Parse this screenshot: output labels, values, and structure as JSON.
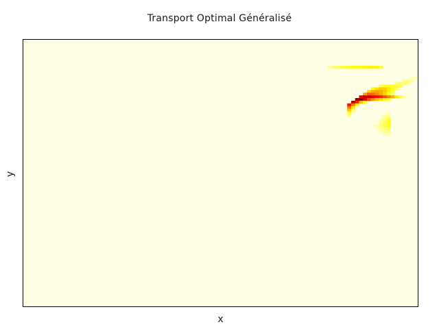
{
  "chart_data": {
    "type": "heatmap",
    "title": "Transport Optimal Généralisé",
    "xlabel": "x",
    "ylabel": "y",
    "grid": false,
    "legend": "none",
    "colormap": [
      "#ffffe5",
      "#ffff00",
      "#ff9900",
      "#ff0000",
      "#550000"
    ],
    "background_color": "#ffffe5",
    "x_ticks": [],
    "y_ticks": [],
    "ncols": 100,
    "nrows": 100,
    "cells": [
      [
        77,
        10,
        0.08
      ],
      [
        78,
        10,
        0.12
      ],
      [
        79,
        10,
        0.15
      ],
      [
        80,
        10,
        0.18
      ],
      [
        81,
        10,
        0.2
      ],
      [
        82,
        10,
        0.22
      ],
      [
        83,
        10,
        0.24
      ],
      [
        84,
        10,
        0.25
      ],
      [
        85,
        10,
        0.26
      ],
      [
        86,
        10,
        0.27
      ],
      [
        87,
        10,
        0.28
      ],
      [
        88,
        10,
        0.28
      ],
      [
        89,
        10,
        0.27
      ],
      [
        90,
        10,
        0.2
      ],
      [
        98,
        14,
        0.05
      ],
      [
        99,
        14,
        0.06
      ],
      [
        96,
        15,
        0.08
      ],
      [
        97,
        15,
        0.1
      ],
      [
        98,
        15,
        0.08
      ],
      [
        94,
        16,
        0.12
      ],
      [
        95,
        16,
        0.15
      ],
      [
        96,
        16,
        0.14
      ],
      [
        97,
        16,
        0.1
      ],
      [
        90,
        17,
        0.15
      ],
      [
        91,
        17,
        0.2
      ],
      [
        92,
        17,
        0.22
      ],
      [
        93,
        17,
        0.2
      ],
      [
        94,
        17,
        0.18
      ],
      [
        95,
        17,
        0.14
      ],
      [
        88,
        18,
        0.25
      ],
      [
        89,
        18,
        0.32
      ],
      [
        90,
        18,
        0.38
      ],
      [
        91,
        18,
        0.36
      ],
      [
        92,
        18,
        0.3
      ],
      [
        93,
        18,
        0.22
      ],
      [
        94,
        18,
        0.15
      ],
      [
        87,
        19,
        0.35
      ],
      [
        88,
        19,
        0.45
      ],
      [
        89,
        19,
        0.48
      ],
      [
        90,
        19,
        0.45
      ],
      [
        91,
        19,
        0.38
      ],
      [
        92,
        19,
        0.28
      ],
      [
        93,
        19,
        0.18
      ],
      [
        86,
        20,
        0.5
      ],
      [
        87,
        20,
        0.6
      ],
      [
        88,
        20,
        0.58
      ],
      [
        89,
        20,
        0.52
      ],
      [
        90,
        20,
        0.45
      ],
      [
        91,
        20,
        0.35
      ],
      [
        92,
        20,
        0.22
      ],
      [
        93,
        20,
        0.12
      ],
      [
        85,
        21,
        0.75
      ],
      [
        86,
        21,
        0.85
      ],
      [
        87,
        21,
        0.82
      ],
      [
        88,
        21,
        0.78
      ],
      [
        89,
        21,
        0.74
      ],
      [
        90,
        21,
        0.7
      ],
      [
        91,
        21,
        0.62
      ],
      [
        92,
        21,
        0.55
      ],
      [
        93,
        21,
        0.45
      ],
      [
        94,
        21,
        0.3
      ],
      [
        95,
        21,
        0.15
      ],
      [
        96,
        21,
        0.06
      ],
      [
        84,
        22,
        0.9
      ],
      [
        85,
        22,
        0.95
      ],
      [
        86,
        22,
        0.78
      ],
      [
        87,
        22,
        0.62
      ],
      [
        88,
        22,
        0.52
      ],
      [
        89,
        22,
        0.4
      ],
      [
        90,
        22,
        0.32
      ],
      [
        91,
        22,
        0.25
      ],
      [
        92,
        22,
        0.18
      ],
      [
        83,
        23,
        0.85
      ],
      [
        84,
        23,
        0.7
      ],
      [
        85,
        23,
        0.4
      ],
      [
        86,
        23,
        0.22
      ],
      [
        82,
        24,
        0.72
      ],
      [
        83,
        24,
        0.55
      ],
      [
        84,
        24,
        0.22
      ],
      [
        82,
        25,
        0.55
      ],
      [
        83,
        25,
        0.3
      ],
      [
        82,
        26,
        0.38
      ],
      [
        83,
        26,
        0.15
      ],
      [
        82,
        27,
        0.22
      ],
      [
        82,
        28,
        0.1
      ],
      [
        92,
        27,
        0.05
      ],
      [
        91,
        28,
        0.06
      ],
      [
        92,
        28,
        0.08
      ],
      [
        91,
        29,
        0.1
      ],
      [
        92,
        29,
        0.15
      ],
      [
        90,
        30,
        0.08
      ],
      [
        91,
        30,
        0.12
      ],
      [
        92,
        30,
        0.2
      ],
      [
        90,
        31,
        0.1
      ],
      [
        91,
        31,
        0.15
      ],
      [
        92,
        31,
        0.22
      ],
      [
        89,
        32,
        0.06
      ],
      [
        90,
        32,
        0.1
      ],
      [
        91,
        32,
        0.16
      ],
      [
        92,
        32,
        0.2
      ],
      [
        89,
        33,
        0.05
      ],
      [
        90,
        33,
        0.08
      ],
      [
        91,
        33,
        0.12
      ],
      [
        92,
        33,
        0.15
      ],
      [
        90,
        34,
        0.05
      ],
      [
        91,
        34,
        0.08
      ],
      [
        92,
        34,
        0.1
      ],
      [
        91,
        35,
        0.05
      ],
      [
        92,
        35,
        0.06
      ]
    ]
  }
}
